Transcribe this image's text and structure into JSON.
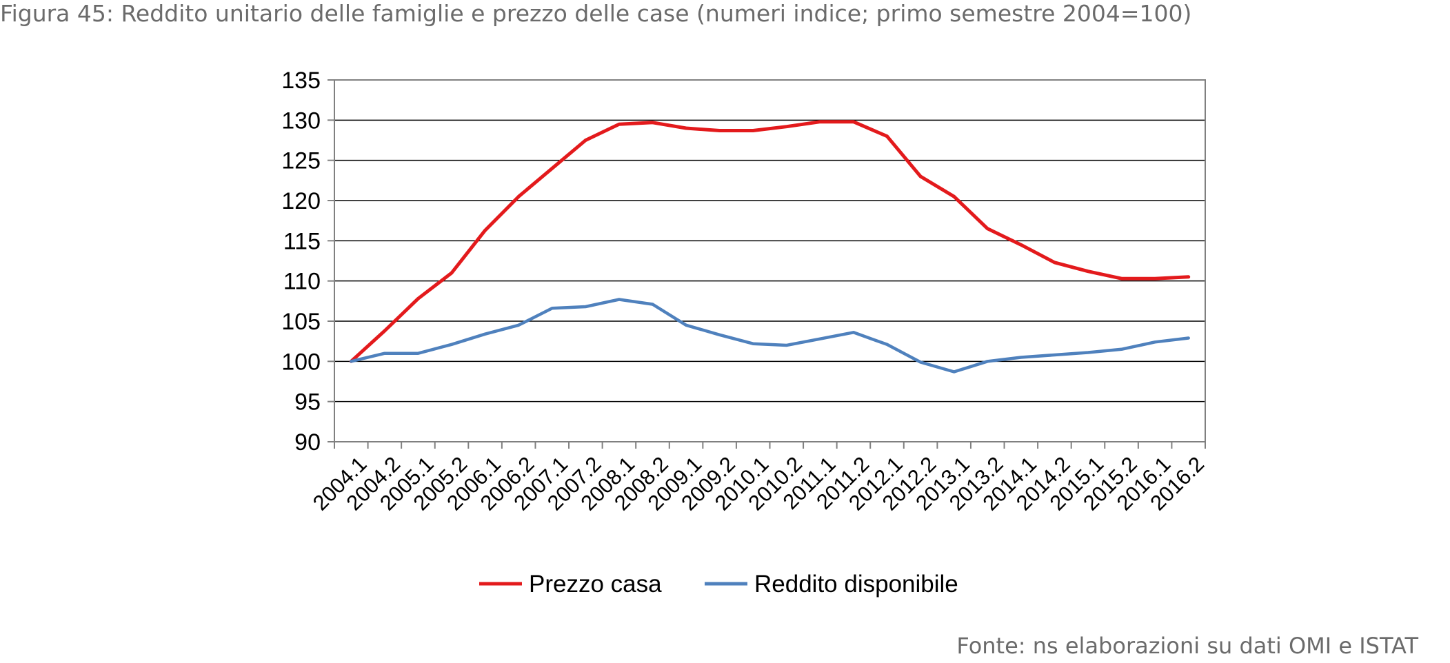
{
  "figure": {
    "title": "Figura 45: Reddito unitario delle famiglie e prezzo delle case (numeri indice; primo semestre 2004=100)",
    "source": "Fonte: ns elaborazioni su dati OMI e ISTAT"
  },
  "chart_data": {
    "type": "line",
    "title": "",
    "xlabel": "",
    "ylabel": "",
    "ylim": [
      90,
      135
    ],
    "yticks": [
      90,
      95,
      100,
      105,
      110,
      115,
      120,
      125,
      130,
      135
    ],
    "grid": true,
    "legend_position": "bottom",
    "categories": [
      "2004.1",
      "2004.2",
      "2005.1",
      "2005.2",
      "2006.1",
      "2006.2",
      "2007.1",
      "2007.2",
      "2008.1",
      "2008.2",
      "2009.1",
      "2009.2",
      "2010.1",
      "2010.2",
      "2011.1",
      "2011.2",
      "2012.1",
      "2012.2",
      "2013.1",
      "2013.2",
      "2014.1",
      "2014.2",
      "2015.1",
      "2015.2",
      "2016.1",
      "2016.2"
    ],
    "series": [
      {
        "name": "Prezzo casa",
        "color": "#e31a1c",
        "values": [
          100,
          103.8,
          107.8,
          111.0,
          116.3,
          120.5,
          124.0,
          127.5,
          129.5,
          129.7,
          129.0,
          128.7,
          128.7,
          129.2,
          129.8,
          129.8,
          128.0,
          123.0,
          120.5,
          116.5,
          114.5,
          112.3,
          111.2,
          110.3,
          110.3,
          110.5
        ]
      },
      {
        "name": "Reddito disponibile",
        "color": "#4f81bd",
        "values": [
          100,
          101.0,
          101.0,
          102.1,
          103.4,
          104.5,
          106.6,
          106.8,
          107.7,
          107.1,
          104.5,
          103.3,
          102.2,
          102.0,
          102.8,
          103.6,
          102.1,
          99.9,
          98.7,
          100.0,
          100.5,
          100.8,
          101.1,
          101.5,
          102.4,
          102.9
        ]
      }
    ]
  }
}
